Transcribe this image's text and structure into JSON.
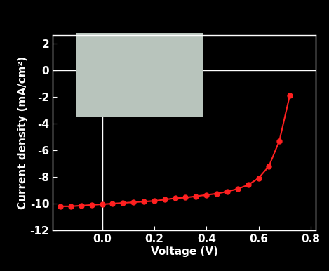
{
  "chart_data": {
    "type": "line",
    "x_label": "Voltage (V)",
    "y_label": "Current density (mA/cm²)",
    "x": [
      -0.16,
      -0.12,
      -0.08,
      -0.04,
      0.0,
      0.04,
      0.08,
      0.12,
      0.16,
      0.2,
      0.24,
      0.28,
      0.32,
      0.36,
      0.4,
      0.44,
      0.48,
      0.52,
      0.56,
      0.6,
      0.64,
      0.68,
      0.72
    ],
    "values": [
      -10.2,
      -10.2,
      -10.15,
      -10.1,
      -10.05,
      -10.0,
      -9.95,
      -9.9,
      -9.85,
      -9.8,
      -9.7,
      -9.6,
      -9.55,
      -9.45,
      -9.35,
      -9.25,
      -9.1,
      -8.9,
      -8.6,
      -8.1,
      -7.2,
      -5.3,
      -1.9
    ],
    "color": "#ff2020",
    "marker": "circle",
    "line_style": "solid",
    "xlim": [
      -0.19,
      0.82
    ],
    "xticks": [
      0.0,
      0.2,
      0.4,
      0.6,
      0.8
    ],
    "ylim": [
      -12,
      2.6
    ],
    "yticks": [
      -12,
      -10,
      -8,
      -6,
      -4,
      -2,
      0,
      2
    ]
  }
}
